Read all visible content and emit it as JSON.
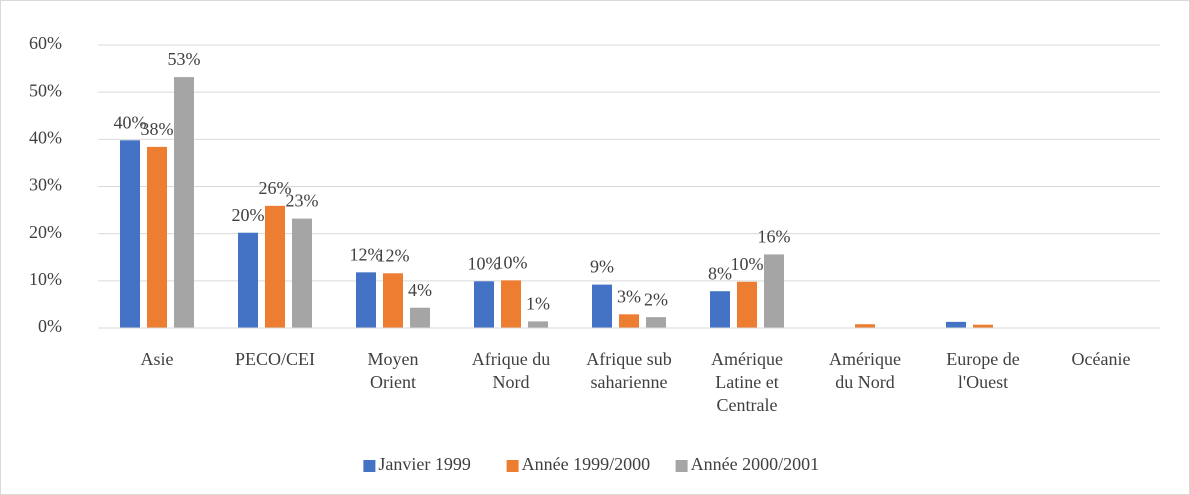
{
  "chart_data": {
    "type": "bar",
    "categories": [
      "Asie",
      "PECO/CEI",
      "Moyen\nOrient",
      "Afrique du\nNord",
      "Afrique sub\nsaharienne",
      "Amérique\nLatine et\nCentrale",
      "Amérique\ndu Nord",
      "Europe de\nl'Ouest",
      "Océanie"
    ],
    "series": [
      {
        "name": "Janvier 1999",
        "color": "#4472c4",
        "values": [
          39.8,
          20.2,
          11.8,
          9.9,
          9.2,
          7.8,
          0,
          1.3,
          0
        ],
        "value_labels": [
          "40%",
          "20%",
          "12%",
          "10%",
          "9%",
          "8%",
          null,
          null,
          null
        ]
      },
      {
        "name": "Année 1999/2000",
        "color": "#ed7d31",
        "values": [
          38.4,
          25.9,
          11.6,
          10.1,
          2.9,
          9.8,
          0.8,
          0.7,
          0
        ],
        "value_labels": [
          "38%",
          "26%",
          "12%",
          "10%",
          "3%",
          "10%",
          null,
          null,
          null
        ]
      },
      {
        "name": "Année 2000/2001",
        "color": "#a5a5a5",
        "values": [
          53.2,
          23.2,
          4.3,
          1.4,
          2.3,
          15.6,
          0,
          0,
          0
        ],
        "value_labels": [
          "53%",
          "23%",
          "4%",
          "1%",
          "2%",
          "16%",
          null,
          null,
          null
        ]
      }
    ],
    "ylim": [
      0,
      60
    ],
    "yticks": [
      {
        "value": 0,
        "label": "0%"
      },
      {
        "value": 10,
        "label": "10%"
      },
      {
        "value": 20,
        "label": "20%"
      },
      {
        "value": 30,
        "label": "30%"
      },
      {
        "value": 40,
        "label": "40%"
      },
      {
        "value": 50,
        "label": "50%"
      },
      {
        "value": 60,
        "label": "60%"
      }
    ],
    "grid": true,
    "legend": "bottom"
  }
}
